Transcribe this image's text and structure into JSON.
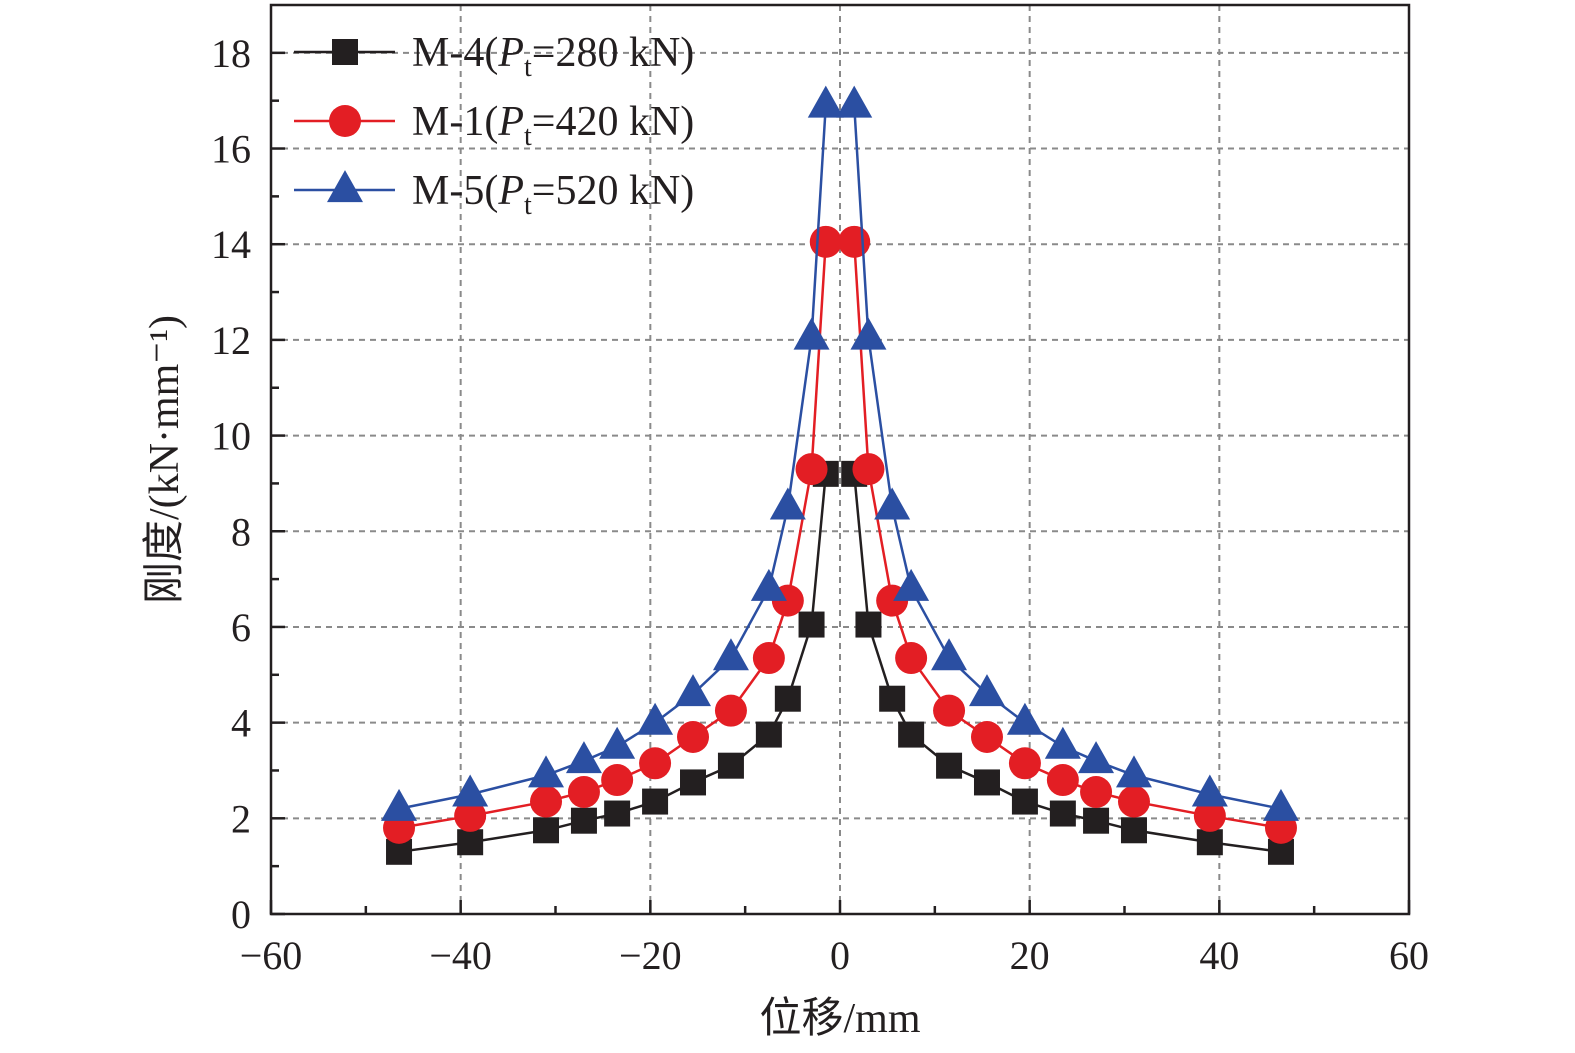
{
  "chart_data": {
    "type": "line",
    "xlabel": "位移/mm",
    "ylabel": "刚度/(kN·mm⁻¹)",
    "xlim": [
      -60,
      60
    ],
    "ylim": [
      0,
      19
    ],
    "xticks": [
      -60,
      -40,
      -20,
      0,
      20,
      40,
      60
    ],
    "xtick_labels": [
      "−60",
      "−40",
      "−20",
      "0",
      "20",
      "40",
      "60"
    ],
    "yticks": [
      0,
      2,
      4,
      6,
      8,
      10,
      12,
      14,
      16,
      18
    ],
    "ytick_labels": [
      "0",
      "2",
      "4",
      "6",
      "8",
      "10",
      "12",
      "14",
      "16",
      "18"
    ],
    "grid": true,
    "legend_position": "top-left",
    "series": [
      {
        "name": "M-4(Pt=280 kN)",
        "legend": {
          "prefix": "M-4(",
          "italic": "P",
          "sub": "t",
          "suffix": "=280 kN)"
        },
        "color": "#231f20",
        "marker": "square",
        "x": [
          -46.5,
          -39,
          -31,
          -27,
          -23.5,
          -19.5,
          -15.5,
          -11.5,
          -7.5,
          -5.5,
          -3,
          -1.5,
          1.5,
          3,
          5.5,
          7.5,
          11.5,
          15.5,
          19.5,
          23.5,
          27,
          31,
          39,
          46.5
        ],
        "y": [
          1.3,
          1.5,
          1.75,
          1.95,
          2.1,
          2.35,
          2.75,
          3.1,
          3.75,
          4.5,
          6.05,
          9.2,
          9.2,
          6.05,
          4.5,
          3.75,
          3.1,
          2.75,
          2.35,
          2.1,
          1.95,
          1.75,
          1.5,
          1.3
        ]
      },
      {
        "name": "M-1(Pt=420 kN)",
        "legend": {
          "prefix": "M-1(",
          "italic": "P",
          "sub": "t",
          "suffix": "=420 kN)"
        },
        "color": "#e31e24",
        "marker": "circle",
        "x": [
          -46.5,
          -39,
          -31,
          -27,
          -23.5,
          -19.5,
          -15.5,
          -11.5,
          -7.5,
          -5.5,
          -3,
          -1.5,
          1.5,
          3,
          5.5,
          7.5,
          11.5,
          15.5,
          19.5,
          23.5,
          27,
          31,
          39,
          46.5
        ],
        "y": [
          1.8,
          2.05,
          2.35,
          2.55,
          2.8,
          3.15,
          3.7,
          4.25,
          5.35,
          6.55,
          9.3,
          14.05,
          14.05,
          9.3,
          6.55,
          5.35,
          4.25,
          3.7,
          3.15,
          2.8,
          2.55,
          2.35,
          2.05,
          1.8
        ]
      },
      {
        "name": "M-5(Pt=520 kN)",
        "legend": {
          "prefix": "M-5(",
          "italic": "P",
          "sub": "t",
          "suffix": "=520 kN)"
        },
        "color": "#2b4fa2",
        "marker": "triangle",
        "x": [
          -46.5,
          -39,
          -31,
          -27,
          -23.5,
          -19.5,
          -15.5,
          -11.5,
          -7.5,
          -5.5,
          -3,
          -1.5,
          1.5,
          3,
          5.5,
          7.5,
          11.5,
          15.5,
          19.5,
          23.5,
          27,
          31,
          39,
          46.5
        ],
        "y": [
          2.2,
          2.5,
          2.9,
          3.2,
          3.5,
          4.0,
          4.6,
          5.35,
          6.8,
          8.5,
          12.05,
          16.9,
          16.9,
          12.05,
          8.5,
          6.8,
          5.35,
          4.6,
          4.0,
          3.5,
          3.2,
          2.9,
          2.5,
          2.2
        ]
      }
    ]
  }
}
